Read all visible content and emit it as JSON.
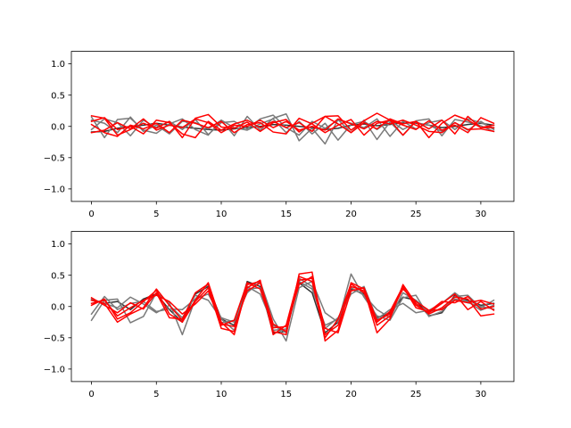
{
  "chart_data": [
    {
      "type": "line",
      "xlim": [
        -1.55,
        32.55
      ],
      "ylim": [
        -1.2,
        1.2
      ],
      "xticks": [
        0,
        5,
        10,
        15,
        20,
        25,
        30
      ],
      "xtick_labels": [
        "0",
        "5",
        "10",
        "15",
        "20",
        "25",
        "30"
      ],
      "yticks": [
        -1.0,
        -0.5,
        0.0,
        0.5,
        1.0
      ],
      "ytick_labels": [
        "−1.0",
        "−0.5",
        "0.0",
        "0.5",
        "1.0"
      ],
      "grid": false,
      "x": [
        0,
        1,
        2,
        3,
        4,
        5,
        6,
        7,
        8,
        9,
        10,
        11,
        12,
        13,
        14,
        15,
        16,
        17,
        18,
        19,
        20,
        21,
        22,
        23,
        24,
        25,
        26,
        27,
        28,
        29,
        30,
        31
      ],
      "series": [
        {
          "color": "#333333",
          "values": [
            -0.09,
            -0.08,
            -0.03,
            0.0,
            0.02,
            0.05,
            0.02,
            -0.01,
            -0.03,
            -0.05,
            -0.06,
            -0.04,
            -0.02,
            0.0,
            0.03,
            0.02,
            0.0,
            -0.02,
            -0.05,
            -0.03,
            0.02,
            0.04,
            0.01,
            0.03,
            0.06,
            0.05,
            0.02,
            -0.02,
            0.0,
            0.03,
            0.05,
            0.02
          ]
        },
        {
          "color": "#7a7a7a",
          "values": [
            0.15,
            -0.18,
            0.11,
            0.13,
            -0.06,
            -0.11,
            0.04,
            0.12,
            -0.05,
            -0.14,
            0.1,
            -0.15,
            0.16,
            -0.06,
            0.13,
            0.2,
            -0.23,
            -0.03,
            -0.28,
            0.11,
            -0.1,
            0.1,
            -0.21,
            0.07,
            -0.14,
            0.09,
            0.12,
            -0.15,
            0.11,
            0.07,
            0.01,
            -0.08
          ]
        },
        {
          "color": "#7a7a7a",
          "values": [
            0.1,
            0.05,
            -0.1,
            0.15,
            -0.08,
            0.02,
            -0.12,
            0.08,
            0.06,
            -0.04,
            0.1,
            -0.02,
            -0.06,
            0.04,
            0.12,
            -0.1,
            0.08,
            -0.12,
            0.05,
            -0.22,
            0.03,
            0.08,
            -0.05,
            0.1,
            -0.05,
            0.06,
            0.02,
            -0.08,
            0.06,
            -0.06,
            0.08,
            -0.05
          ]
        },
        {
          "color": "#7a7a7a",
          "values": [
            -0.05,
            0.12,
            0.06,
            -0.15,
            0.1,
            -0.02,
            0.08,
            -0.05,
            0.11,
            -0.13,
            0.06,
            0.08,
            -0.04,
            0.12,
            0.18,
            -0.02,
            -0.14,
            0.08,
            -0.03,
            0.1,
            0.05,
            -0.02,
            0.12,
            -0.16,
            0.08,
            -0.04,
            0.06,
            0.1,
            -0.05,
            0.12,
            0.06,
            -0.03
          ]
        },
        {
          "color": "#ff0000",
          "values": [
            0.17,
            0.13,
            -0.14,
            -0.05,
            0.05,
            -0.03,
            0.08,
            -0.18,
            0.13,
            0.19,
            -0.01,
            -0.03,
            0.07,
            -0.08,
            0.06,
            0.11,
            -0.09,
            0.05,
            0.16,
            0.17,
            -0.06,
            0.09,
            0.21,
            0.1,
            -0.14,
            0.08,
            -0.18,
            0.05,
            0.18,
            0.1,
            -0.02,
            -0.02
          ]
        },
        {
          "color": "#ff0000",
          "values": [
            0.03,
            -0.1,
            -0.16,
            0.02,
            -0.04,
            0.05,
            -0.1,
            0.1,
            0.05,
            -0.02,
            0.08,
            -0.1,
            0.03,
            0.06,
            -0.09,
            -0.12,
            0.13,
            0.04,
            -0.1,
            0.02,
            0.11,
            -0.14,
            0.05,
            0.1,
            0.02,
            -0.05,
            0.09,
            -0.06,
            0.02,
            -0.1,
            0.14,
            0.05
          ]
        },
        {
          "color": "#ff0000",
          "values": [
            0.08,
            0.14,
            -0.05,
            0.0,
            -0.12,
            0.1,
            0.06,
            -0.12,
            -0.18,
            0.08,
            -0.06,
            0.04,
            0.1,
            -0.02,
            0.08,
            -0.02,
            0.06,
            -0.08,
            0.16,
            0.04,
            -0.1,
            0.06,
            -0.04,
            0.12,
            0.04,
            0.08,
            -0.04,
            0.1,
            -0.12,
            0.16,
            -0.02,
            0.02
          ]
        },
        {
          "color": "#ff0000",
          "values": [
            -0.1,
            -0.06,
            0.06,
            -0.04,
            0.12,
            -0.06,
            0.02,
            -0.02,
            0.12,
            0.06,
            -0.1,
            0.02,
            0.0,
            0.1,
            -0.02,
            0.08,
            -0.06,
            0.0,
            -0.06,
            0.12,
            0.04,
            -0.04,
            0.08,
            0.04,
            0.1,
            0.02,
            -0.08,
            -0.1,
            0.06,
            -0.05,
            -0.04,
            -0.08
          ]
        }
      ]
    },
    {
      "type": "line",
      "xlim": [
        -1.55,
        32.55
      ],
      "ylim": [
        -1.2,
        1.2
      ],
      "xticks": [
        0,
        5,
        10,
        15,
        20,
        25,
        30
      ],
      "xtick_labels": [
        "0",
        "5",
        "10",
        "15",
        "20",
        "25",
        "30"
      ],
      "yticks": [
        -1.0,
        -0.5,
        0.0,
        0.5,
        1.0
      ],
      "ytick_labels": [
        "−1.0",
        "−0.5",
        "0.0",
        "0.5",
        "1.0"
      ],
      "grid": false,
      "x": [
        0,
        1,
        2,
        3,
        4,
        5,
        6,
        7,
        8,
        9,
        10,
        11,
        12,
        13,
        14,
        15,
        16,
        17,
        18,
        19,
        20,
        21,
        22,
        23,
        24,
        25,
        26,
        27,
        28,
        29,
        30,
        31
      ],
      "series": [
        {
          "color": "#333333",
          "values": [
            0.1,
            0.05,
            0.08,
            -0.05,
            0.12,
            0.2,
            -0.05,
            -0.25,
            0.2,
            0.32,
            -0.2,
            -0.3,
            0.4,
            0.32,
            -0.42,
            -0.4,
            0.38,
            0.22,
            -0.42,
            -0.25,
            0.28,
            0.2,
            -0.18,
            -0.1,
            0.15,
            0.1,
            -0.15,
            -0.1,
            0.18,
            0.1,
            0.02,
            0.05
          ]
        },
        {
          "color": "#7a7a7a",
          "values": [
            -0.22,
            0.1,
            0.12,
            -0.26,
            -0.16,
            0.22,
            0.06,
            -0.45,
            0.12,
            0.36,
            -0.26,
            -0.22,
            0.22,
            0.4,
            -0.2,
            -0.55,
            0.3,
            0.4,
            -0.1,
            -0.25,
            0.52,
            0.15,
            -0.15,
            -0.22,
            0.14,
            0.18,
            -0.16,
            -0.08,
            0.16,
            0.18,
            -0.02,
            0.1
          ]
        },
        {
          "color": "#7a7a7a",
          "values": [
            -0.12,
            0.16,
            -0.05,
            0.05,
            0.08,
            -0.08,
            -0.04,
            -0.05,
            0.12,
            0.2,
            -0.18,
            -0.25,
            0.28,
            0.3,
            -0.38,
            -0.36,
            0.4,
            0.28,
            -0.3,
            -0.2,
            0.3,
            0.18,
            -0.05,
            -0.18,
            0.22,
            0.1,
            -0.08,
            -0.05,
            0.12,
            0.08,
            -0.06,
            0.02
          ]
        },
        {
          "color": "#7a7a7a",
          "values": [
            0.12,
            0.05,
            -0.02,
            0.15,
            0.04,
            -0.1,
            0.02,
            -0.18,
            0.18,
            0.1,
            -0.2,
            -0.38,
            0.32,
            0.2,
            -0.3,
            -0.42,
            0.45,
            0.32,
            -0.35,
            -0.18,
            0.2,
            0.32,
            -0.2,
            -0.05,
            0.05,
            -0.1,
            -0.06,
            0.05,
            0.22,
            0.06,
            0.0,
            -0.04
          ]
        },
        {
          "color": "#ff0000",
          "values": [
            0.1,
            0.05,
            -0.25,
            -0.12,
            -0.02,
            0.28,
            0.02,
            -0.22,
            0.1,
            0.38,
            -0.25,
            -0.45,
            0.35,
            0.4,
            -0.4,
            -0.45,
            0.52,
            0.55,
            -0.55,
            -0.38,
            0.38,
            0.28,
            -0.42,
            -0.2,
            0.35,
            0.05,
            -0.12,
            -0.02,
            0.15,
            0.12,
            -0.15,
            -0.12
          ]
        },
        {
          "color": "#ff0000",
          "values": [
            0.02,
            0.12,
            -0.2,
            -0.1,
            0.08,
            0.26,
            -0.12,
            -0.25,
            0.08,
            0.3,
            -0.35,
            -0.4,
            0.3,
            0.42,
            -0.45,
            -0.3,
            0.48,
            0.4,
            -0.45,
            -0.3,
            0.32,
            0.25,
            -0.3,
            -0.15,
            0.3,
            0.02,
            -0.1,
            0.05,
            0.2,
            -0.05,
            0.08,
            -0.06
          ]
        },
        {
          "color": "#ff0000",
          "values": [
            0.14,
            0.02,
            -0.1,
            0.06,
            -0.04,
            0.22,
            -0.18,
            -0.2,
            0.22,
            0.36,
            -0.28,
            -0.32,
            0.25,
            0.38,
            -0.28,
            -0.4,
            0.42,
            0.45,
            -0.35,
            -0.42,
            0.25,
            0.3,
            -0.22,
            -0.12,
            0.28,
            0.08,
            -0.06,
            -0.05,
            0.1,
            0.06,
            0.1,
            0.04
          ]
        },
        {
          "color": "#ff0000",
          "values": [
            0.05,
            0.1,
            -0.15,
            -0.02,
            0.1,
            0.18,
            0.08,
            -0.12,
            0.04,
            0.25,
            -0.3,
            -0.22,
            0.38,
            0.28,
            -0.34,
            -0.32,
            0.35,
            0.48,
            -0.5,
            -0.2,
            0.36,
            0.22,
            -0.25,
            -0.08,
            0.32,
            -0.02,
            -0.08,
            0.08,
            0.06,
            0.16,
            -0.04,
            0.0
          ]
        }
      ]
    }
  ]
}
